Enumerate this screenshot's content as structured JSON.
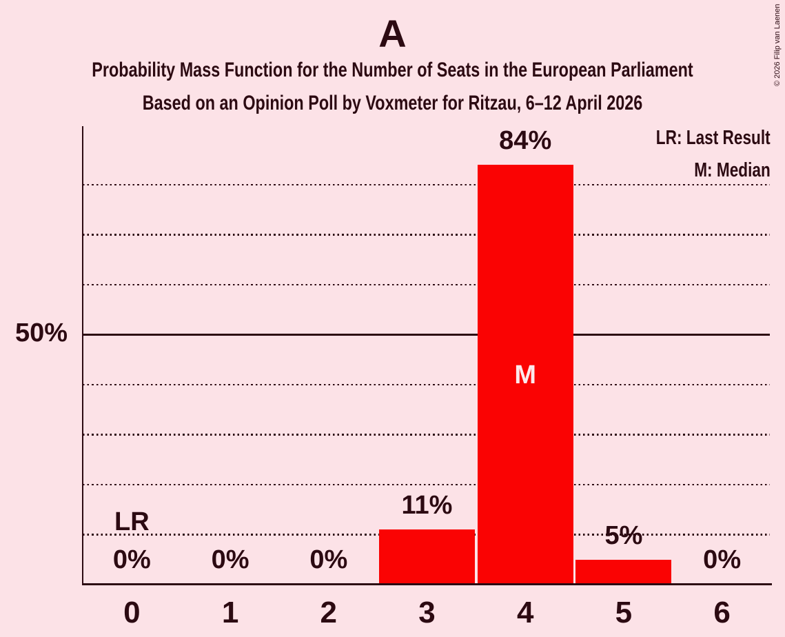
{
  "title": "A",
  "subtitle1": "Probability Mass Function for the Number of Seats in the European Parliament",
  "subtitle2": "Based on an Opinion Poll by Voxmeter for Ritzau, 6–12 April 2026",
  "legend": {
    "lr": "LR: Last Result",
    "m": "M: Median",
    "position": "top-right"
  },
  "copyright": "© 2026 Filip van Laenen",
  "y_axis": {
    "tick_label": "50%",
    "tick_value": 50
  },
  "annotations": {
    "last_result_label": "LR",
    "last_result_seat": 0,
    "median_label": "M",
    "median_seat": 4
  },
  "colors": {
    "background": "#fce2e7",
    "bar": "#fa0303",
    "text": "#2c0a12",
    "median_text": "#fce9ec"
  },
  "chart_data": {
    "type": "bar",
    "title": "A",
    "categories": [
      "0",
      "1",
      "2",
      "3",
      "4",
      "5",
      "6"
    ],
    "values": [
      0,
      0,
      0,
      11,
      84,
      5,
      0
    ],
    "value_labels": [
      "0%",
      "0%",
      "0%",
      "11%",
      "84%",
      "5%",
      "0%"
    ],
    "xlabel": "",
    "ylabel": "",
    "ylim": [
      0,
      92
    ],
    "grid": "dotted horizontal lines every 10%, solid line at 50%",
    "dotted_gridline_percents": [
      10,
      20,
      30,
      40,
      60,
      70,
      80
    ],
    "solid_gridline_percent": 50,
    "legend_position": "top-right"
  }
}
